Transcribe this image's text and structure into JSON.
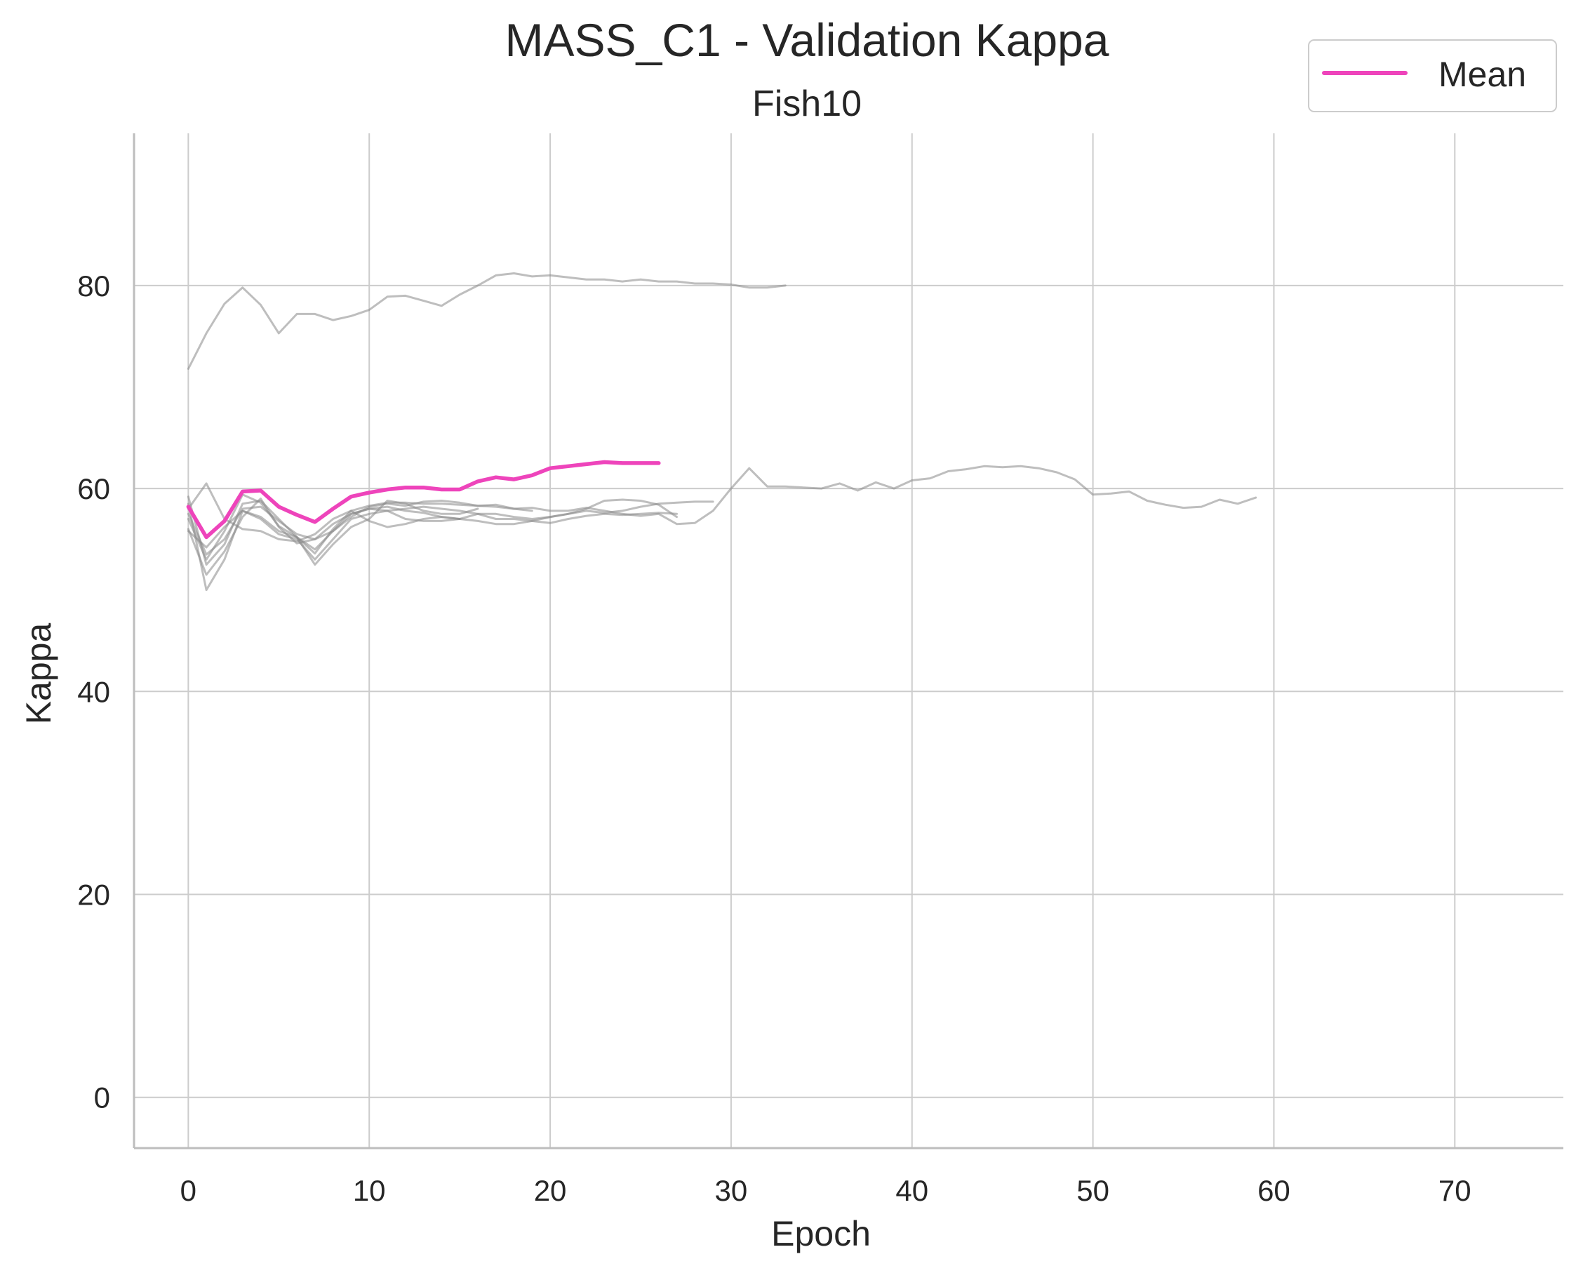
{
  "chart_data": {
    "type": "line",
    "title": "MASS_C1 - Validation Kappa",
    "subtitle": "Fish10",
    "xlabel": "Epoch",
    "ylabel": "Kappa",
    "xlim": [
      -3,
      76
    ],
    "ylim": [
      -5,
      95
    ],
    "xticks": [
      0,
      10,
      20,
      30,
      40,
      50,
      60,
      70
    ],
    "yticks": [
      0,
      20,
      40,
      60,
      80
    ],
    "grid": true,
    "legend": {
      "position": "top-right",
      "entries": [
        "Mean"
      ]
    },
    "colors": {
      "mean": "#ee44bb",
      "runs": "#888888",
      "grid": "#cccccc",
      "axis": "#bdbdbd"
    },
    "mean": {
      "name": "Mean",
      "y": [
        58.2,
        55.2,
        56.8,
        59.7,
        59.8,
        58.2,
        57.4,
        56.7,
        58.0,
        59.2,
        59.6,
        59.9,
        60.1,
        60.1,
        59.9,
        59.9,
        60.7,
        61.1,
        60.9,
        61.3,
        62.0,
        62.2,
        62.4,
        62.6,
        62.5,
        62.5,
        62.5
      ]
    },
    "runs": [
      {
        "y": [
          71.8,
          75.3,
          78.2,
          79.8,
          78.1,
          75.3,
          77.2,
          77.2,
          76.6,
          77.0,
          77.6,
          78.9,
          79.0,
          78.5,
          78.0,
          79.1,
          80.0,
          81.0,
          81.2,
          80.9,
          81.0,
          80.8,
          80.6,
          80.6,
          80.4,
          80.6,
          80.4,
          80.4,
          80.2,
          80.2,
          80.1,
          79.8,
          79.8,
          80.0
        ]
      },
      {
        "y": [
          57.0,
          53.0,
          55.8,
          59.4,
          58.6,
          56.3,
          55.2,
          53.6,
          56.0,
          57.8,
          58.3,
          58.6,
          58.6,
          58.5,
          58.5,
          58.4,
          58.3,
          58.4,
          58.0,
          58.1,
          57.8,
          57.8,
          58.1,
          57.8,
          57.5,
          57.3,
          57.5,
          56.5,
          56.6,
          57.8,
          60.0,
          62.0,
          60.2,
          60.2,
          60.1,
          60.0,
          60.5,
          59.8,
          60.6,
          60.0,
          60.8,
          61.0,
          61.7,
          61.9,
          62.2,
          62.1,
          62.2,
          62.0,
          61.6,
          60.9,
          59.4,
          59.5,
          59.7,
          58.8,
          58.4,
          58.1,
          58.2,
          58.9,
          58.5,
          59.1
        ]
      },
      {
        "y": [
          56.0,
          51.5,
          53.8,
          57.2,
          59.0,
          56.2,
          54.6,
          55.0,
          55.8,
          57.2,
          58.2,
          58.5,
          58.3,
          58.7,
          58.8,
          58.6,
          58.3,
          58.2,
          58.0,
          57.8
        ]
      },
      {
        "y": [
          58.5,
          50.0,
          53.0,
          57.8,
          57.0,
          55.5,
          55.0,
          53.0,
          55.0,
          57.0,
          57.5,
          57.8,
          57.0,
          56.8,
          56.8,
          57.0
        ]
      },
      {
        "y": [
          59.2,
          52.5,
          54.5,
          58.5,
          58.8,
          57.0,
          55.2,
          52.5,
          54.5,
          56.2,
          57.0,
          58.8,
          58.5,
          57.8,
          57.5,
          57.5,
          58.0
        ]
      },
      {
        "y": [
          55.8,
          54.2,
          56.2,
          57.8,
          57.2,
          55.8,
          55.2,
          54.0,
          55.8,
          57.5,
          58.0,
          58.2,
          57.8,
          57.6,
          57.2,
          57.0,
          57.5,
          57.5,
          57.2,
          57.0,
          57.2,
          57.5,
          57.8,
          57.6,
          57.8,
          58.2,
          58.5,
          58.6,
          58.7,
          58.7
        ]
      },
      {
        "y": [
          57.5,
          53.5,
          55.0,
          58.0,
          58.2,
          56.8,
          55.5,
          55.0,
          56.5,
          57.5,
          58.0,
          57.8,
          58.0,
          58.2,
          58.0,
          57.8,
          57.5,
          57.0,
          57.0,
          56.8,
          56.6,
          57.0,
          57.3,
          57.5,
          57.4,
          57.5,
          57.6,
          57.5
        ]
      },
      {
        "y": [
          58.0,
          60.5,
          57.0,
          56.0,
          55.8,
          55.0,
          54.8,
          55.5,
          57.0,
          57.8,
          56.8,
          56.2,
          56.5,
          57.0,
          57.2,
          57.0,
          56.8,
          56.5,
          56.5,
          56.8,
          57.2,
          57.5,
          58.0,
          58.8,
          58.9,
          58.8,
          58.4,
          57.2
        ]
      }
    ]
  }
}
